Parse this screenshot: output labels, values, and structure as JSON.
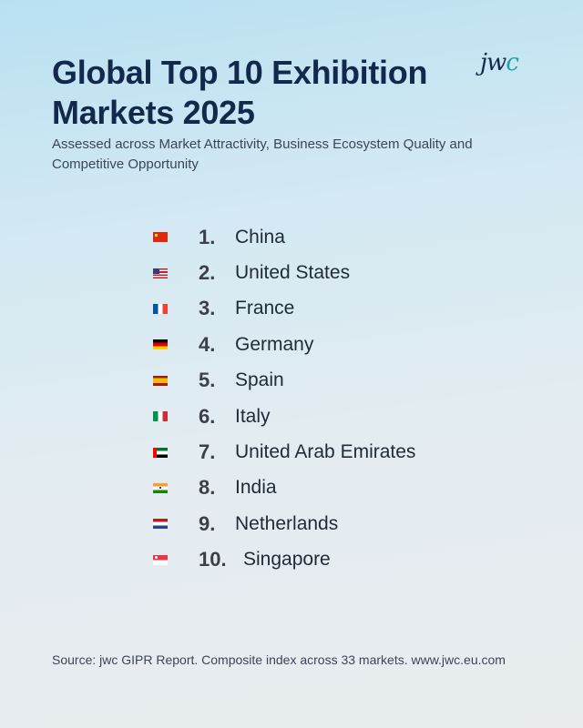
{
  "header": {
    "title": "Global Top 10 Exhibition Markets 2025",
    "subtitle": "Assessed across Market Attractivity, Business Ecosystem Quality and Competitive Opportunity",
    "logo_text_main": "jw",
    "logo_text_accent": "c"
  },
  "ranking": [
    {
      "rank": "1.",
      "country": "China",
      "flag": "china-flag-icon"
    },
    {
      "rank": "2.",
      "country": "United States",
      "flag": "united-states-flag-icon"
    },
    {
      "rank": "3.",
      "country": "France",
      "flag": "france-flag-icon"
    },
    {
      "rank": "4.",
      "country": "Germany",
      "flag": "germany-flag-icon"
    },
    {
      "rank": "5.",
      "country": "Spain",
      "flag": "spain-flag-icon"
    },
    {
      "rank": "6.",
      "country": "Italy",
      "flag": "italy-flag-icon"
    },
    {
      "rank": "7.",
      "country": "United Arab Emirates",
      "flag": "uae-flag-icon"
    },
    {
      "rank": "8.",
      "country": "India",
      "flag": "india-flag-icon"
    },
    {
      "rank": "9.",
      "country": "Netherlands",
      "flag": "netherlands-flag-icon"
    },
    {
      "rank": "10.",
      "country": "Singapore",
      "flag": "singapore-flag-icon"
    }
  ],
  "footer": {
    "source": "Source: jwc GIPR Report. Composite index across 33 markets. www.jwc.eu.com"
  },
  "colors": {
    "title": "#13294b",
    "logo_accent": "#1aa6a0",
    "background_top": "#b9e0f2",
    "background_bottom": "#e9edf0"
  }
}
